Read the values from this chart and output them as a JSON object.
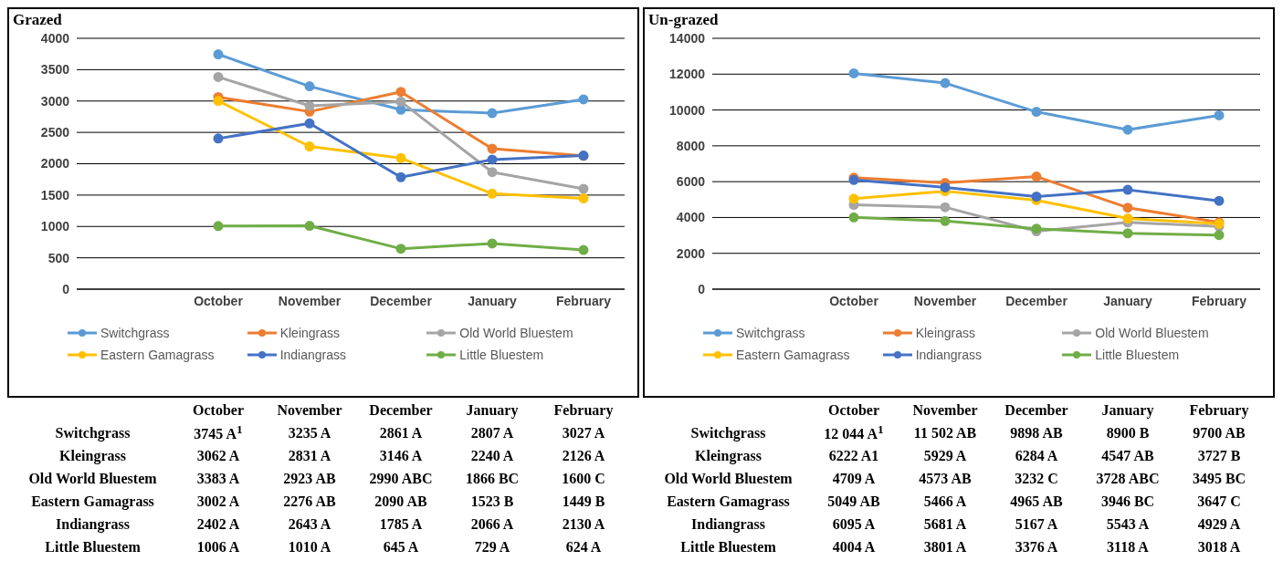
{
  "chart_data": [
    {
      "type": "line",
      "title": "Grazed",
      "categories": [
        "October",
        "November",
        "December",
        "January",
        "February"
      ],
      "ylim": [
        0,
        4000
      ],
      "yticks": [
        0,
        500,
        1000,
        1500,
        2000,
        2500,
        3000,
        3500,
        4000
      ],
      "grid": "y",
      "legend": "bottom",
      "marker": "circle",
      "series": [
        {
          "name": "Switchgrass",
          "color": "#5b9bd5",
          "values": [
            3745,
            3235,
            2861,
            2807,
            3027
          ],
          "value_labels": [
            "3745 A$^{1}$",
            "3235 A",
            "2861 A",
            "2807 A",
            "3027 A"
          ]
        },
        {
          "name": "Kleingrass",
          "color": "#ed7d31",
          "values": [
            3062,
            2831,
            3146,
            2240,
            2126
          ],
          "value_labels": [
            "3062 A",
            "2831 A",
            "3146 A",
            "2240 A",
            "2126 A"
          ]
        },
        {
          "name": "Old World Bluestem",
          "color": "#a5a5a5",
          "values": [
            3383,
            2923,
            2990,
            1866,
            1600
          ],
          "value_labels": [
            "3383 A",
            "2923 AB",
            "2990 ABC",
            "1866 BC",
            "1600 C"
          ]
        },
        {
          "name": "Eastern Gamagrass",
          "color": "#ffc000",
          "values": [
            3002,
            2276,
            2090,
            1523,
            1449
          ],
          "value_labels": [
            "3002 A",
            "2276 AB",
            "2090 AB",
            "1523 B",
            "1449 B"
          ]
        },
        {
          "name": "Indiangrass",
          "color": "#4472c4",
          "values": [
            2402,
            2643,
            1785,
            2066,
            2130
          ],
          "value_labels": [
            "2402 A",
            "2643 A",
            "1785 A",
            "2066 A",
            "2130 A"
          ]
        },
        {
          "name": "Little Bluestem",
          "color": "#70ad47",
          "values": [
            1006,
            1010,
            645,
            729,
            624
          ],
          "value_labels": [
            "1006 A",
            "1010 A",
            "645 A",
            "729 A",
            "624 A"
          ]
        }
      ]
    },
    {
      "type": "line",
      "title": "Un-grazed",
      "categories": [
        "October",
        "November",
        "December",
        "January",
        "February"
      ],
      "ylim": [
        0,
        14000
      ],
      "yticks": [
        0,
        2000,
        4000,
        6000,
        8000,
        10000,
        12000,
        14000
      ],
      "grid": "y",
      "legend": "bottom",
      "marker": "circle",
      "series": [
        {
          "name": "Switchgrass",
          "color": "#5b9bd5",
          "values": [
            12044,
            11502,
            9898,
            8900,
            9700
          ],
          "value_labels": [
            "12 044 A$^{1}$",
            "11 502 AB",
            "9898 AB",
            "8900 B",
            "9700 AB"
          ]
        },
        {
          "name": "Kleingrass",
          "color": "#ed7d31",
          "values": [
            6222,
            5929,
            6284,
            4547,
            3727
          ],
          "value_labels": [
            "6222 A1",
            "5929 A",
            "6284 A",
            "4547 AB",
            "3727 B"
          ]
        },
        {
          "name": "Old World Bluestem",
          "color": "#a5a5a5",
          "values": [
            4709,
            4573,
            3232,
            3728,
            3495
          ],
          "value_labels": [
            "4709 A",
            "4573 AB",
            "3232 C",
            "3728 ABC",
            "3495 BC"
          ]
        },
        {
          "name": "Eastern Gamagrass",
          "color": "#ffc000",
          "values": [
            5049,
            5466,
            4965,
            3946,
            3647
          ],
          "value_labels": [
            "5049 AB",
            "5466 A",
            "4965 AB",
            "3946 BC",
            "3647 C"
          ]
        },
        {
          "name": "Indiangrass",
          "color": "#4472c4",
          "values": [
            6095,
            5681,
            5167,
            5543,
            4929
          ],
          "value_labels": [
            "6095 A",
            "5681 A",
            "5167 A",
            "5543 A",
            "4929 A"
          ]
        },
        {
          "name": "Little Bluestem",
          "color": "#70ad47",
          "values": [
            4004,
            3801,
            3376,
            3118,
            3018
          ],
          "value_labels": [
            "4004 A",
            "3801 A",
            "3376 A",
            "3118 A",
            "3018 A"
          ]
        }
      ]
    }
  ]
}
